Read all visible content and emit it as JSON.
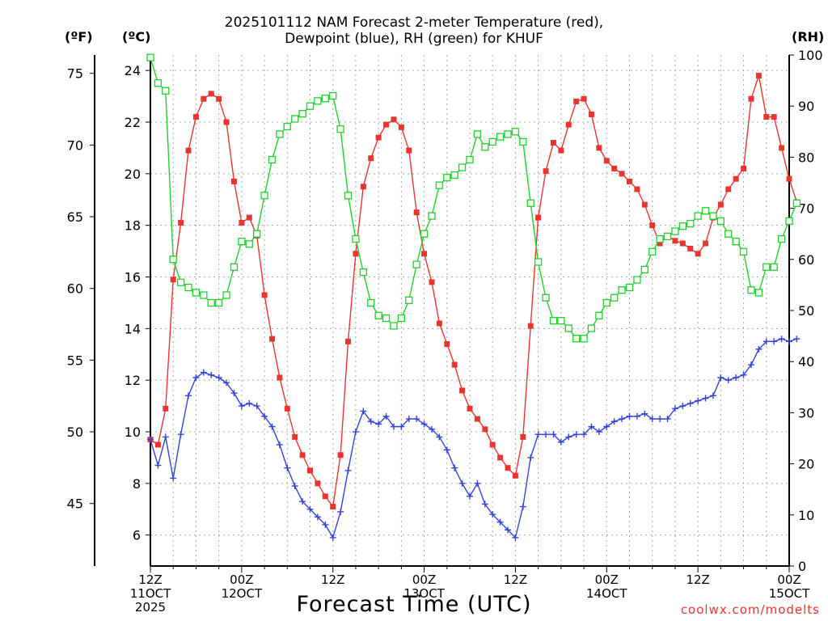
{
  "chart_data": {
    "type": "line",
    "title_line1": "2025101112 NAM Forecast 2-meter Temperature (red),",
    "title_line2": "Dewpoint (blue), RH (green) for KHUF",
    "xlabel": "Forecast Time (UTC)",
    "credit": "coolwx.com/modelts",
    "left_outer_unit": "(ºF)",
    "left_inner_unit": "(ºC)",
    "right_unit": "(RH)",
    "x_range_hours": [
      0,
      84
    ],
    "y_celsius_range": [
      4.8,
      24.6
    ],
    "y_fahrenheit_ticks": [
      45,
      50,
      55,
      60,
      65,
      70,
      75
    ],
    "y_celsius_ticks": [
      6,
      8,
      10,
      12,
      14,
      16,
      18,
      20,
      22,
      24
    ],
    "y_rh_ticks": [
      0,
      10,
      20,
      30,
      40,
      50,
      60,
      70,
      80,
      90,
      100
    ],
    "x_ticks": [
      {
        "hour": 0,
        "line1": "12Z",
        "line2": "11OCT",
        "line3": "2025"
      },
      {
        "hour": 12,
        "line1": "00Z",
        "line2": "12OCT",
        "line3": ""
      },
      {
        "hour": 24,
        "line1": "12Z",
        "line2": "",
        "line3": ""
      },
      {
        "hour": 36,
        "line1": "00Z",
        "line2": "13OCT",
        "line3": ""
      },
      {
        "hour": 48,
        "line1": "12Z",
        "line2": "",
        "line3": ""
      },
      {
        "hour": 60,
        "line1": "00Z",
        "line2": "14OCT",
        "line3": ""
      },
      {
        "hour": 72,
        "line1": "12Z",
        "line2": "",
        "line3": ""
      },
      {
        "hour": 84,
        "line1": "00Z",
        "line2": "15OCT",
        "line3": ""
      }
    ],
    "series": [
      {
        "name": "Temperature",
        "unit": "°C",
        "color": "#e8352f",
        "marker": "filled-square",
        "values": [
          9.7,
          9.5,
          10.9,
          15.9,
          18.1,
          20.9,
          22.2,
          22.9,
          23.1,
          22.9,
          22.0,
          19.7,
          18.1,
          18.3,
          17.6,
          15.3,
          13.6,
          12.1,
          10.9,
          9.8,
          9.1,
          8.5,
          8.0,
          7.5,
          7.1,
          9.1,
          13.5,
          16.9,
          19.5,
          20.6,
          21.4,
          21.9,
          22.1,
          21.8,
          20.9,
          18.5,
          16.9,
          15.8,
          14.2,
          13.4,
          12.6,
          11.6,
          10.9,
          10.5,
          10.1,
          9.5,
          9.0,
          8.6,
          8.3,
          9.8,
          14.1,
          18.3,
          20.1,
          21.2,
          20.9,
          21.9,
          22.8,
          22.9,
          22.3,
          21.0,
          20.5,
          20.2,
          20.0,
          19.7,
          19.4,
          18.8,
          18.0,
          17.3,
          17.6,
          17.4,
          17.3,
          17.1,
          16.9,
          17.3,
          18.3,
          18.8,
          19.4,
          19.8,
          20.2,
          22.9,
          23.8,
          22.2,
          22.2,
          21.0,
          19.8,
          18.9
        ]
      },
      {
        "name": "Dewpoint",
        "unit": "°C",
        "color": "#3344d8",
        "marker": "plus",
        "values": [
          9.7,
          8.7,
          9.8,
          8.2,
          9.9,
          11.4,
          12.1,
          12.3,
          12.2,
          12.1,
          11.9,
          11.5,
          11.0,
          11.1,
          11.0,
          10.6,
          10.2,
          9.5,
          8.6,
          7.9,
          7.3,
          7.0,
          6.7,
          6.4,
          5.9,
          6.9,
          8.5,
          10.0,
          10.8,
          10.4,
          10.3,
          10.6,
          10.2,
          10.2,
          10.5,
          10.5,
          10.3,
          10.1,
          9.8,
          9.3,
          8.6,
          8.0,
          7.5,
          8.0,
          7.2,
          6.8,
          6.5,
          6.2,
          5.9,
          7.1,
          9.0,
          9.9,
          9.9,
          9.9,
          9.6,
          9.8,
          9.9,
          9.9,
          10.2,
          10.0,
          10.2,
          10.4,
          10.5,
          10.6,
          10.6,
          10.7,
          10.5,
          10.5,
          10.5,
          10.9,
          11.0,
          11.1,
          11.2,
          11.3,
          11.4,
          12.1,
          12.0,
          12.1,
          12.2,
          12.6,
          13.2,
          13.5,
          13.5,
          13.6,
          13.5,
          13.6
        ]
      },
      {
        "name": "Relative Humidity",
        "unit": "%",
        "color": "#1fd12a",
        "marker": "open-square",
        "values": [
          99.5,
          94.5,
          93.0,
          60.0,
          55.5,
          54.5,
          53.5,
          53.0,
          51.5,
          51.5,
          53.0,
          58.5,
          63.5,
          63.0,
          65.0,
          72.5,
          79.5,
          84.5,
          86.0,
          87.5,
          88.5,
          90.0,
          91.0,
          91.5,
          92.0,
          85.5,
          72.5,
          64.0,
          57.5,
          51.5,
          49.0,
          48.5,
          47.0,
          48.5,
          52.0,
          59.0,
          65.0,
          68.5,
          74.5,
          76.0,
          76.5,
          78.0,
          79.5,
          84.5,
          82.0,
          83.0,
          84.0,
          84.5,
          85.0,
          83.0,
          71.0,
          59.5,
          52.5,
          48.0,
          48.0,
          46.5,
          44.5,
          44.5,
          46.5,
          49.0,
          51.5,
          52.5,
          54.0,
          54.5,
          56.0,
          58.0,
          61.5,
          64.0,
          64.5,
          65.5,
          66.5,
          67.0,
          68.5,
          69.5,
          68.5,
          67.5,
          65.0,
          63.5,
          61.5,
          54.0,
          53.5,
          58.5,
          58.5,
          64.0,
          67.5,
          71.0
        ]
      }
    ]
  }
}
